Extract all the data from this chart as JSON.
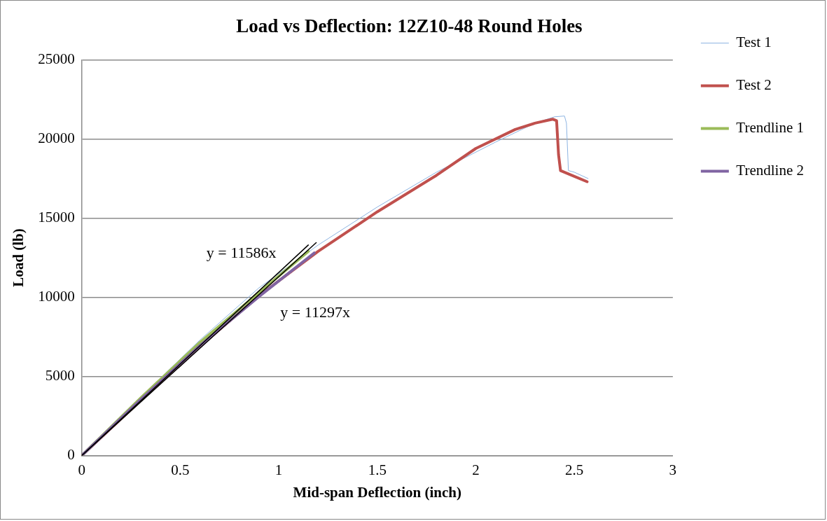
{
  "chart_data": {
    "type": "line",
    "title": "Load vs Deflection: 12Z10-48 Round Holes",
    "xlabel": "Mid-span Deflection (inch)",
    "ylabel": "Load (lb)",
    "xlim": [
      0,
      3
    ],
    "xticks": [
      0,
      0.5,
      1,
      1.5,
      2,
      2.5,
      3
    ],
    "ylim": [
      0,
      25000
    ],
    "yticks": [
      0,
      5000,
      10000,
      15000,
      20000,
      25000
    ],
    "grid": "y",
    "legend": "right",
    "marker": "none",
    "line_style": "solid",
    "series": [
      {
        "name": "Test 1",
        "color": "#8db4e2",
        "x": [
          0,
          0.3,
          0.6,
          0.9,
          1.2,
          1.5,
          1.8,
          2.1,
          2.3,
          2.4,
          2.45,
          2.46,
          2.47,
          2.5,
          2.57
        ],
        "values": [
          0,
          3700,
          7300,
          10600,
          13300,
          15700,
          17900,
          19800,
          21000,
          21400,
          21450,
          21000,
          18000,
          17900,
          17500
        ]
      },
      {
        "name": "Test 2",
        "color": "#c0504d",
        "x": [
          0,
          0.3,
          0.6,
          0.9,
          1.2,
          1.5,
          1.8,
          2.0,
          2.2,
          2.3,
          2.39,
          2.41,
          2.42,
          2.43,
          2.565
        ],
        "values": [
          0,
          3500,
          6900,
          10100,
          12900,
          15400,
          17700,
          19400,
          20600,
          21000,
          21250,
          21150,
          19000,
          18000,
          17300
        ]
      },
      {
        "name": "Trendline 1",
        "color": "#9bbb59",
        "x": [
          0,
          0.3,
          0.6,
          0.9,
          1.15
        ],
        "values": [
          0,
          3650,
          7150,
          10300,
          12900
        ]
      },
      {
        "name": "Trendline 2",
        "color": "#8064a2",
        "x": [
          0,
          0.3,
          0.6,
          0.9,
          1.18
        ],
        "values": [
          0,
          3550,
          6950,
          10050,
          12800
        ]
      },
      {
        "type": "line",
        "color": "#000000",
        "x": [
          0,
          1.15
        ],
        "values": [
          0,
          13300
        ]
      },
      {
        "type": "line",
        "color": "#000000",
        "x": [
          0,
          1.19
        ],
        "values": [
          0,
          13450
        ]
      }
    ],
    "annotations": [
      "y = 11586x",
      "y = 11297x"
    ]
  }
}
